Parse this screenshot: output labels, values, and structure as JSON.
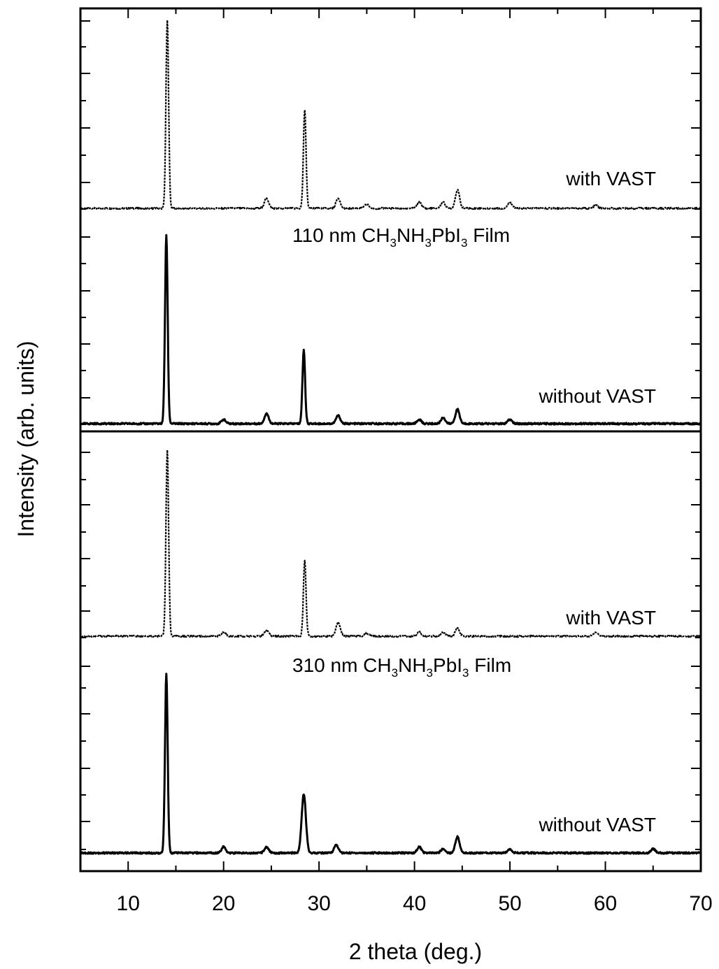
{
  "chart_data": {
    "type": "line",
    "xlabel": "2 theta (deg.)",
    "ylabel": "Intensity (arb. units)",
    "xlim": [
      5,
      70
    ],
    "xticks": [
      "10",
      "20",
      "30",
      "40",
      "50",
      "60",
      "70"
    ],
    "y_tick_labels": false,
    "panels": [
      {
        "film_label": {
          "prefix": "110 nm CH",
          "sub1": "3",
          "mid1": "NH",
          "sub2": "3",
          "mid2": "PbI",
          "sub3": "3",
          "suffix": "  Film"
        },
        "traces": [
          {
            "name": "with VAST",
            "style": "dotted",
            "peaks": [
              {
                "x": 14.1,
                "y": 0.92
              },
              {
                "x": 24.5,
                "y": 0.05
              },
              {
                "x": 28.5,
                "y": 0.48
              },
              {
                "x": 32.0,
                "y": 0.05
              },
              {
                "x": 35.0,
                "y": 0.02
              },
              {
                "x": 40.5,
                "y": 0.03
              },
              {
                "x": 43.0,
                "y": 0.03
              },
              {
                "x": 44.5,
                "y": 0.09
              },
              {
                "x": 50.0,
                "y": 0.03
              },
              {
                "x": 59.0,
                "y": 0.015
              }
            ]
          },
          {
            "name": "without VAST",
            "style": "solid",
            "peaks": [
              {
                "x": 14.0,
                "y": 0.92
              },
              {
                "x": 20.0,
                "y": 0.02
              },
              {
                "x": 24.5,
                "y": 0.05
              },
              {
                "x": 28.4,
                "y": 0.36
              },
              {
                "x": 32.0,
                "y": 0.04
              },
              {
                "x": 40.5,
                "y": 0.02
              },
              {
                "x": 43.0,
                "y": 0.03
              },
              {
                "x": 44.5,
                "y": 0.07
              },
              {
                "x": 50.0,
                "y": 0.02
              }
            ]
          }
        ]
      },
      {
        "film_label": {
          "prefix": "310 nm CH",
          "sub1": "3",
          "mid1": "NH",
          "sub2": "3",
          "mid2": "PbI",
          "sub3": "3",
          "suffix": "  Film"
        },
        "traces": [
          {
            "name": "with VAST",
            "style": "dotted",
            "peaks": [
              {
                "x": 14.1,
                "y": 0.92
              },
              {
                "x": 20.0,
                "y": 0.02
              },
              {
                "x": 24.5,
                "y": 0.03
              },
              {
                "x": 28.5,
                "y": 0.37
              },
              {
                "x": 32.0,
                "y": 0.07
              },
              {
                "x": 35.0,
                "y": 0.015
              },
              {
                "x": 40.5,
                "y": 0.02
              },
              {
                "x": 43.0,
                "y": 0.02
              },
              {
                "x": 44.5,
                "y": 0.04
              },
              {
                "x": 59.0,
                "y": 0.02
              }
            ]
          },
          {
            "name": "without VAST",
            "style": "solid",
            "peaks": [
              {
                "x": 14.0,
                "y": 0.88
              },
              {
                "x": 20.0,
                "y": 0.03
              },
              {
                "x": 24.5,
                "y": 0.03
              },
              {
                "x": 28.4,
                "y": 0.29
              },
              {
                "x": 31.8,
                "y": 0.04
              },
              {
                "x": 40.5,
                "y": 0.03
              },
              {
                "x": 43.0,
                "y": 0.02
              },
              {
                "x": 44.5,
                "y": 0.08
              },
              {
                "x": 50.0,
                "y": 0.02
              },
              {
                "x": 65.0,
                "y": 0.02
              }
            ]
          }
        ]
      }
    ]
  }
}
